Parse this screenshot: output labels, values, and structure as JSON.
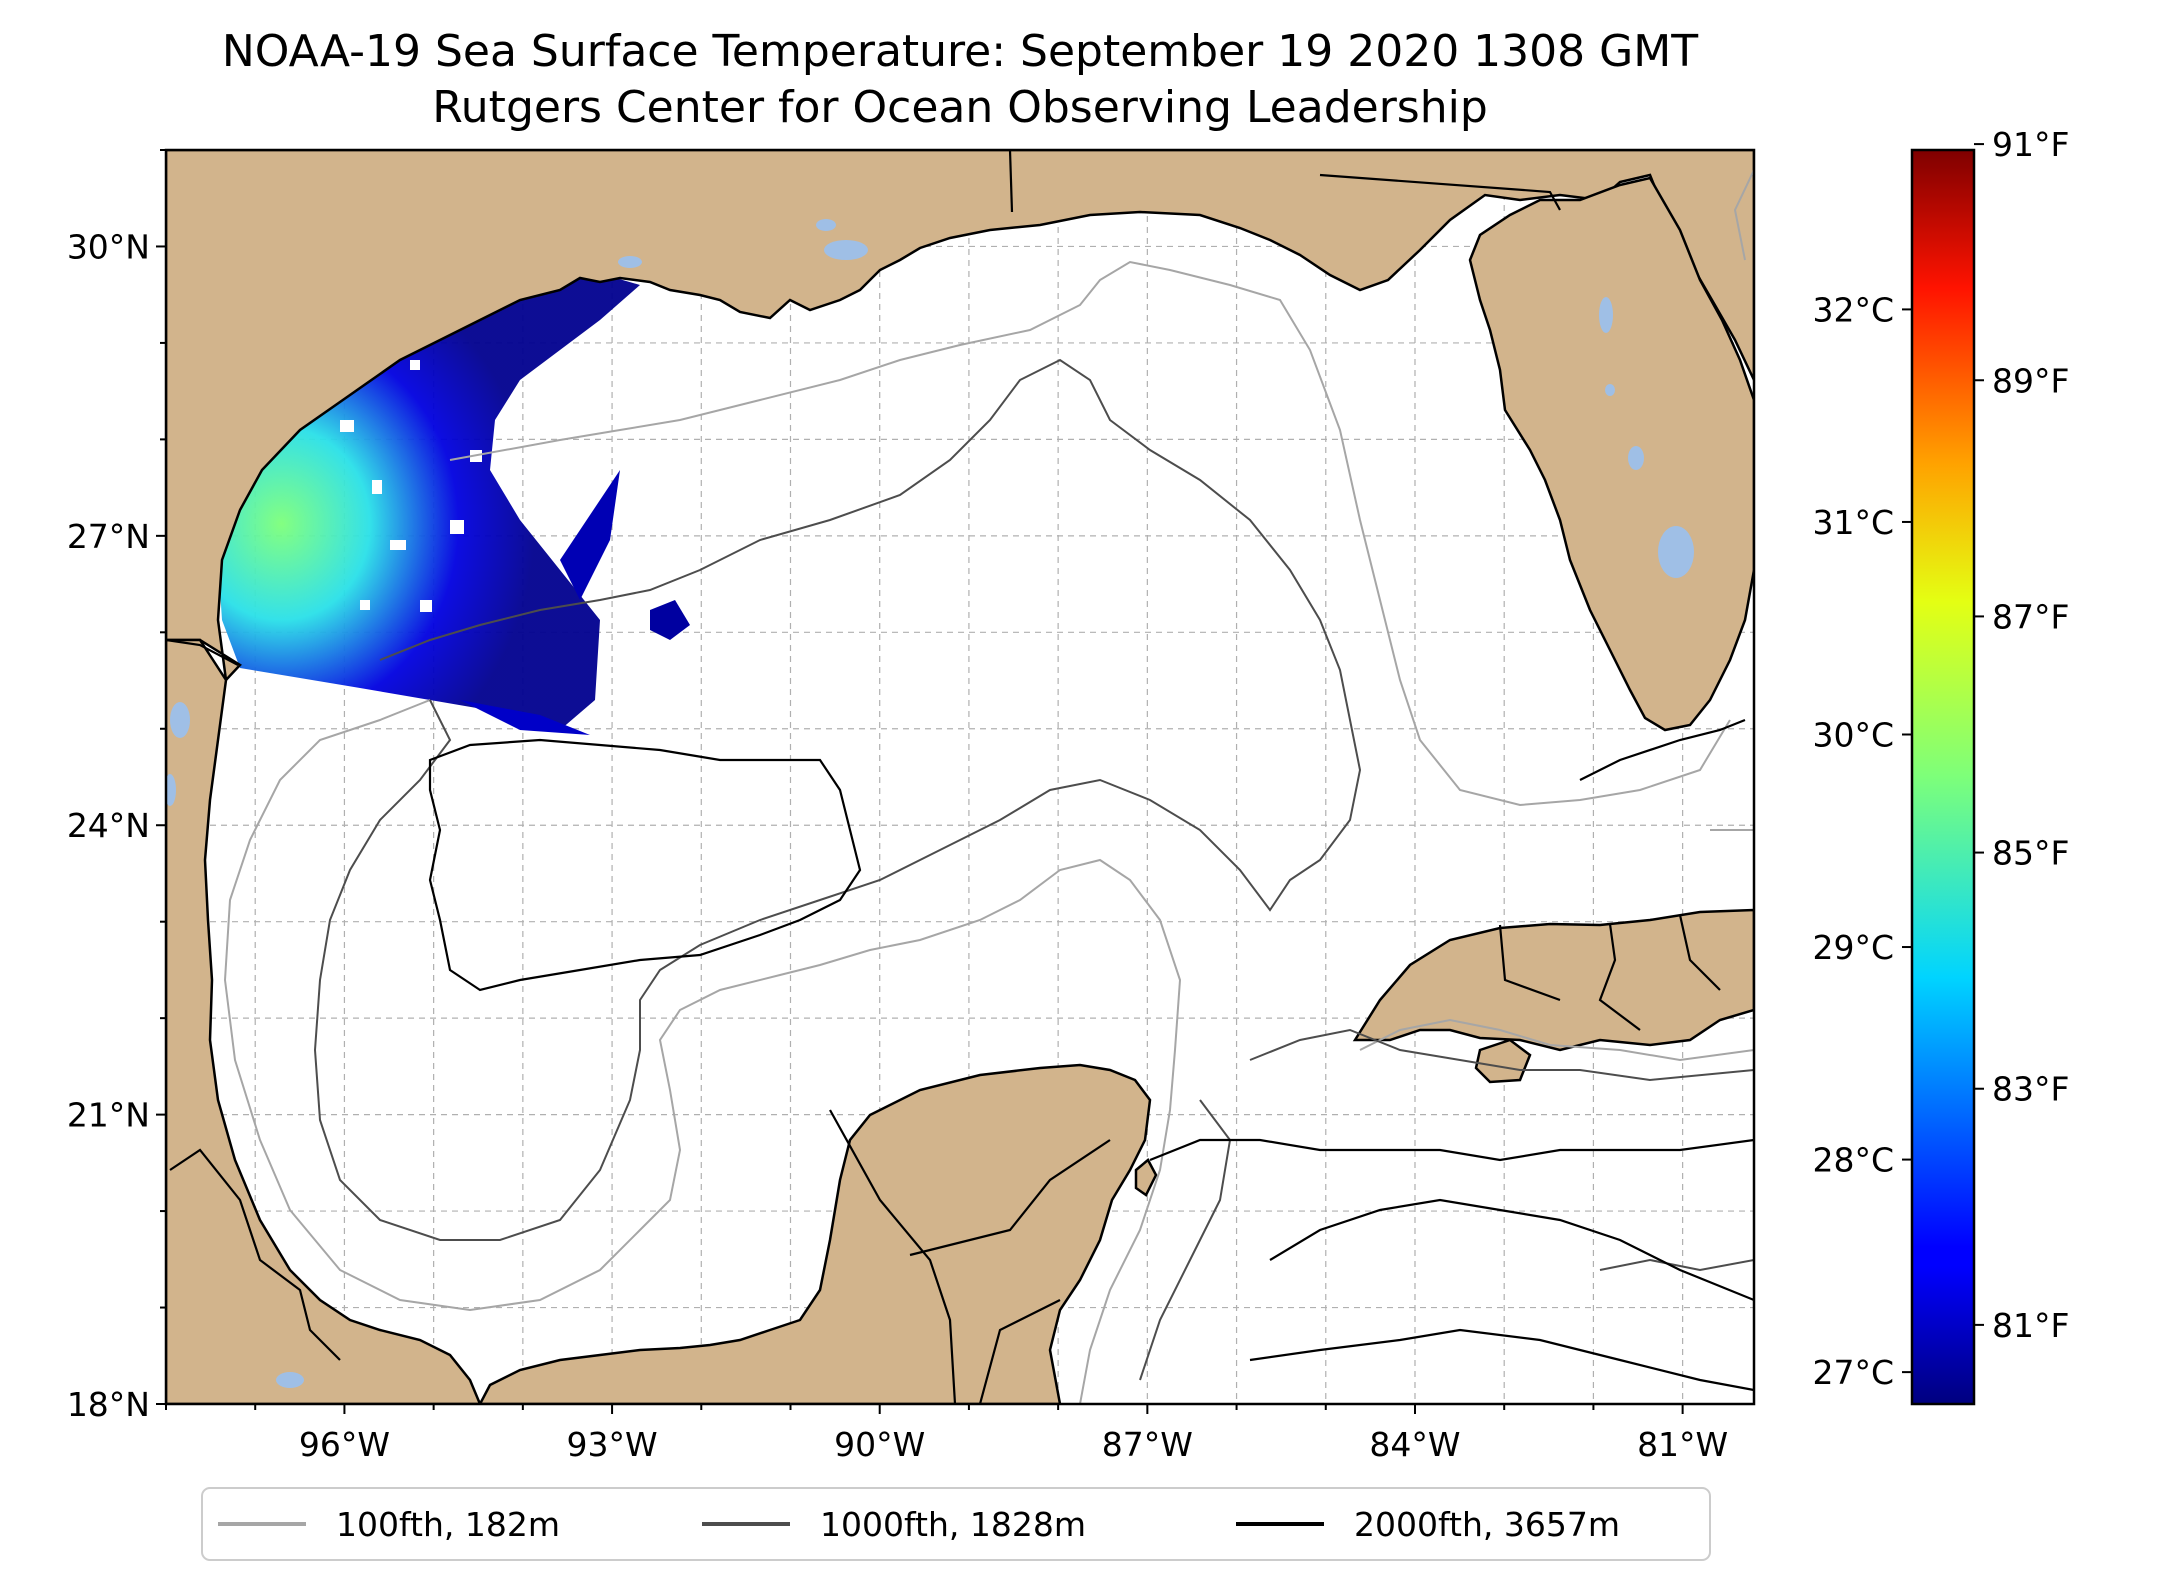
{
  "title": "NOAA-19 Sea Surface Temperature: September 19 2020 1308 GMT",
  "subtitle": "Rutgers Center for Ocean Observing Leadership",
  "map": {
    "lon_range": [
      -98.0,
      -80.2
    ],
    "lat_range": [
      18.0,
      31.0
    ],
    "gridlines": true,
    "lat_ticks": [
      {
        "value": 30,
        "label": "30°N"
      },
      {
        "value": 27,
        "label": "27°N"
      },
      {
        "value": 24,
        "label": "24°N"
      },
      {
        "value": 21,
        "label": "21°N"
      },
      {
        "value": 18,
        "label": "18°N"
      }
    ],
    "lon_ticks": [
      {
        "value": -96,
        "label": "96°W"
      },
      {
        "value": -93,
        "label": "93°W"
      },
      {
        "value": -90,
        "label": "90°W"
      },
      {
        "value": -87,
        "label": "87°W"
      },
      {
        "value": -84,
        "label": "84°W"
      },
      {
        "value": -81,
        "label": "81°W"
      }
    ],
    "land_color": "#d2b48c",
    "lake_color": "#9fbfe6",
    "ocean_color": "#ffffff"
  },
  "colorbar": {
    "colormap": "jet",
    "celsius_range": [
      26.85,
      32.75
    ],
    "celsius_ticks": [
      {
        "value": 27,
        "label": "27°C"
      },
      {
        "value": 28,
        "label": "28°C"
      },
      {
        "value": 29,
        "label": "29°C"
      },
      {
        "value": 30,
        "label": "30°C"
      },
      {
        "value": 31,
        "label": "31°C"
      },
      {
        "value": 32,
        "label": "32°C"
      }
    ],
    "fahrenheit_ticks": [
      {
        "value": 81,
        "label": "81°F"
      },
      {
        "value": 83,
        "label": "83°F"
      },
      {
        "value": 85,
        "label": "85°F"
      },
      {
        "value": 87,
        "label": "87°F"
      },
      {
        "value": 89,
        "label": "89°F"
      },
      {
        "value": 91,
        "label": "91°F"
      }
    ]
  },
  "legend": [
    {
      "label": "100fth, 182m",
      "color": "#a6a6a6"
    },
    {
      "label": "1000fth, 1828m",
      "color": "#4d4d4d"
    },
    {
      "label": "2000fth, 3657m",
      "color": "#000000"
    }
  ]
}
